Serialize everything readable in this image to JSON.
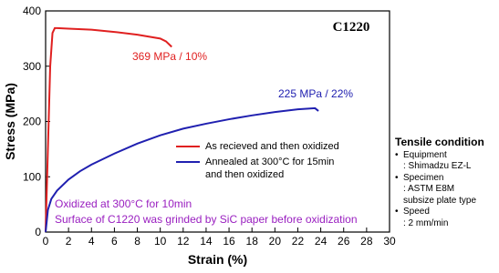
{
  "chart_data": {
    "type": "line",
    "xlabel": "Strain (%)",
    "ylabel": "Stress (MPa)",
    "xlim": [
      0,
      30
    ],
    "xticks": [
      0,
      2,
      4,
      6,
      8,
      10,
      12,
      14,
      16,
      18,
      20,
      22,
      24,
      26,
      28,
      30
    ],
    "ylim": [
      0,
      400
    ],
    "yticks": [
      0,
      100,
      200,
      300,
      400
    ],
    "series": [
      {
        "name": "As recieved and then oxidized",
        "color": "#e02020",
        "x": [
          0,
          0.2,
          0.4,
          0.6,
          0.8,
          1,
          2,
          4,
          6,
          8,
          10,
          10.5,
          11
        ],
        "values": [
          0,
          150,
          300,
          360,
          369,
          369,
          368,
          366,
          362,
          357,
          350,
          345,
          335
        ]
      },
      {
        "name": "Annealed at 300°C for 15min and then oxidized",
        "color": "#2020b0",
        "x": [
          0,
          0.2,
          0.5,
          1,
          2,
          3,
          4,
          6,
          8,
          10,
          12,
          14,
          16,
          18,
          20,
          22,
          23.5,
          23.8
        ],
        "values": [
          0,
          40,
          60,
          75,
          95,
          110,
          122,
          142,
          160,
          175,
          187,
          196,
          204,
          211,
          217,
          222,
          224,
          219
        ]
      }
    ],
    "annotations": [
      {
        "text": "C1220",
        "color": "#000000"
      },
      {
        "text": "369 MPa / 10%",
        "color": "#e02020"
      },
      {
        "text": "225 MPa / 22%",
        "color": "#2020b0"
      },
      {
        "text": "Oxidized at 300°C for 10min",
        "color": "#9a20c0"
      },
      {
        "text": "Surface of C1220 was grinded by SiC paper before oxidization",
        "color": "#9a20c0"
      }
    ]
  },
  "side_panel": {
    "title": "Tensile condition",
    "items": [
      {
        "label": "Equipment",
        "details": [
          ": Shimadzu EZ-L"
        ]
      },
      {
        "label": "Specimen",
        "details": [
          ": ASTM E8M",
          "subsize plate type"
        ]
      },
      {
        "label": "Speed",
        "details": [
          ": 2 mm/min"
        ]
      }
    ]
  }
}
